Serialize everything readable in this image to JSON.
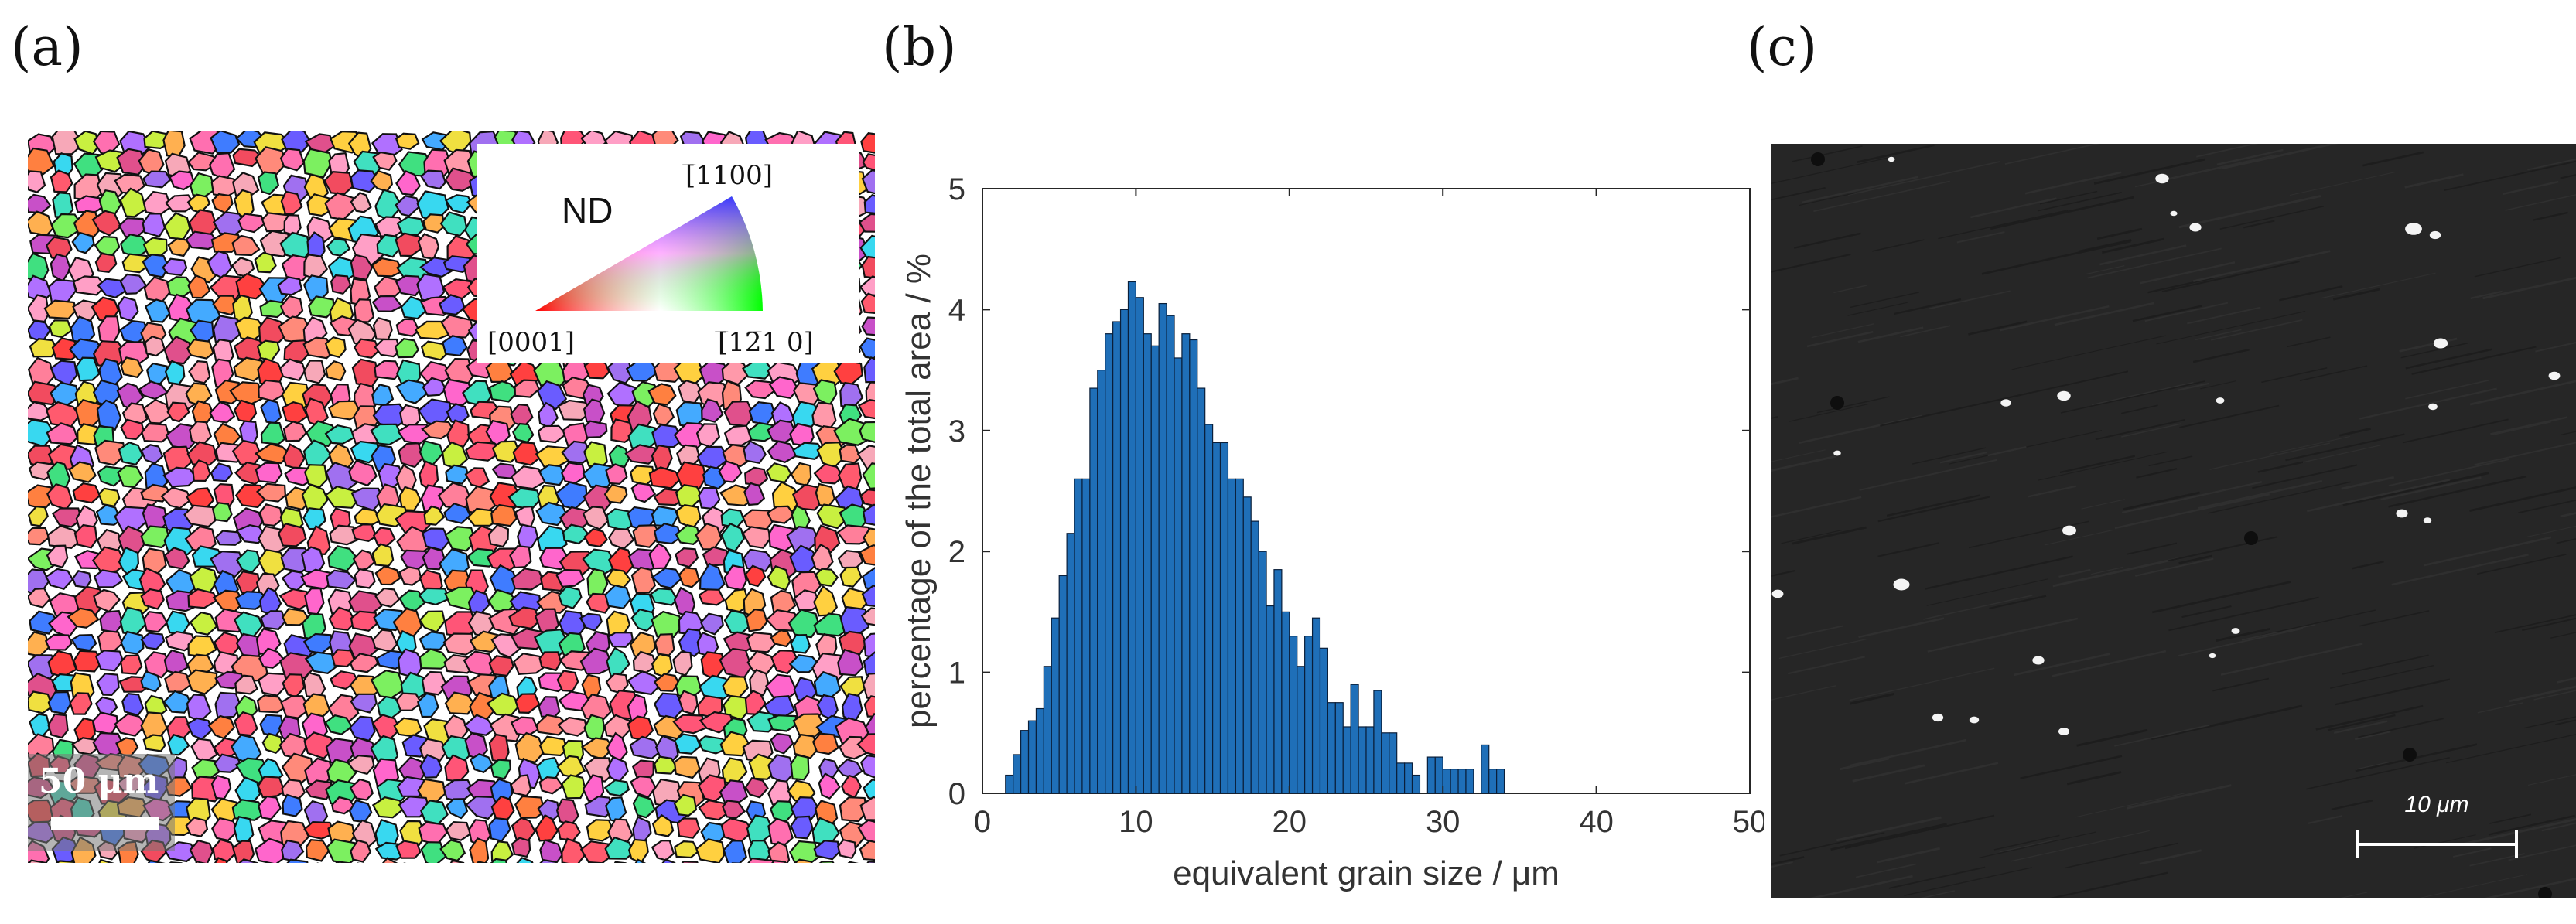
{
  "panels": {
    "a": {
      "label": "(a)",
      "legend": {
        "title": "ND",
        "corner_top": "[̅1100]",
        "corner_left": "[0001]",
        "corner_right": "[̅12̅1 0]"
      },
      "scale_bar": "50 μm"
    },
    "b": {
      "label": "(b)"
    },
    "c": {
      "label": "(c)",
      "scale_bar": "10 μm"
    }
  },
  "colors": {
    "bar_fill": "#1f6fb8",
    "bar_edge": "#0a1f3a",
    "axis": "#262626"
  },
  "chart_data": {
    "type": "bar",
    "title": "",
    "xlabel": "equivalent grain size / μm",
    "ylabel": "percentage of the total area / %",
    "xlim": [
      0,
      50
    ],
    "ylim": [
      0,
      5
    ],
    "xticks": [
      0,
      10,
      20,
      30,
      40,
      50
    ],
    "yticks": [
      0,
      1,
      2,
      3,
      4,
      5
    ],
    "bin_width": 0.5,
    "x": [
      1.75,
      2.25,
      2.75,
      3.25,
      3.75,
      4.25,
      4.75,
      5.25,
      5.75,
      6.25,
      6.75,
      7.25,
      7.75,
      8.25,
      8.75,
      9.25,
      9.75,
      10.25,
      10.75,
      11.25,
      11.75,
      12.25,
      12.75,
      13.25,
      13.75,
      14.25,
      14.75,
      15.25,
      15.75,
      16.25,
      16.75,
      17.25,
      17.75,
      18.25,
      18.75,
      19.25,
      19.75,
      20.25,
      20.75,
      21.25,
      21.75,
      22.25,
      22.75,
      23.25,
      23.75,
      24.25,
      24.75,
      25.25,
      25.75,
      26.25,
      26.75,
      27.25,
      27.75,
      28.25,
      28.75,
      29.25,
      29.75,
      30.25,
      30.75,
      31.25,
      31.75,
      32.25,
      32.75,
      33.25,
      33.75
    ],
    "values": [
      0.15,
      0.32,
      0.52,
      0.6,
      0.7,
      1.05,
      1.45,
      1.8,
      2.15,
      2.6,
      2.6,
      3.35,
      3.5,
      3.8,
      3.9,
      4.0,
      4.23,
      4.1,
      3.8,
      3.7,
      4.05,
      3.95,
      3.6,
      3.8,
      3.75,
      3.35,
      3.05,
      2.9,
      2.9,
      2.6,
      2.6,
      2.45,
      2.25,
      2.0,
      1.55,
      1.85,
      1.5,
      1.3,
      1.05,
      1.3,
      1.45,
      1.2,
      0.75,
      0.75,
      0.55,
      0.9,
      0.55,
      0.55,
      0.85,
      0.5,
      0.5,
      0.25,
      0.25,
      0.15,
      0.0,
      0.3,
      0.3,
      0.2,
      0.2,
      0.2,
      0.2,
      0.0,
      0.4,
      0.2,
      0.2
    ]
  }
}
